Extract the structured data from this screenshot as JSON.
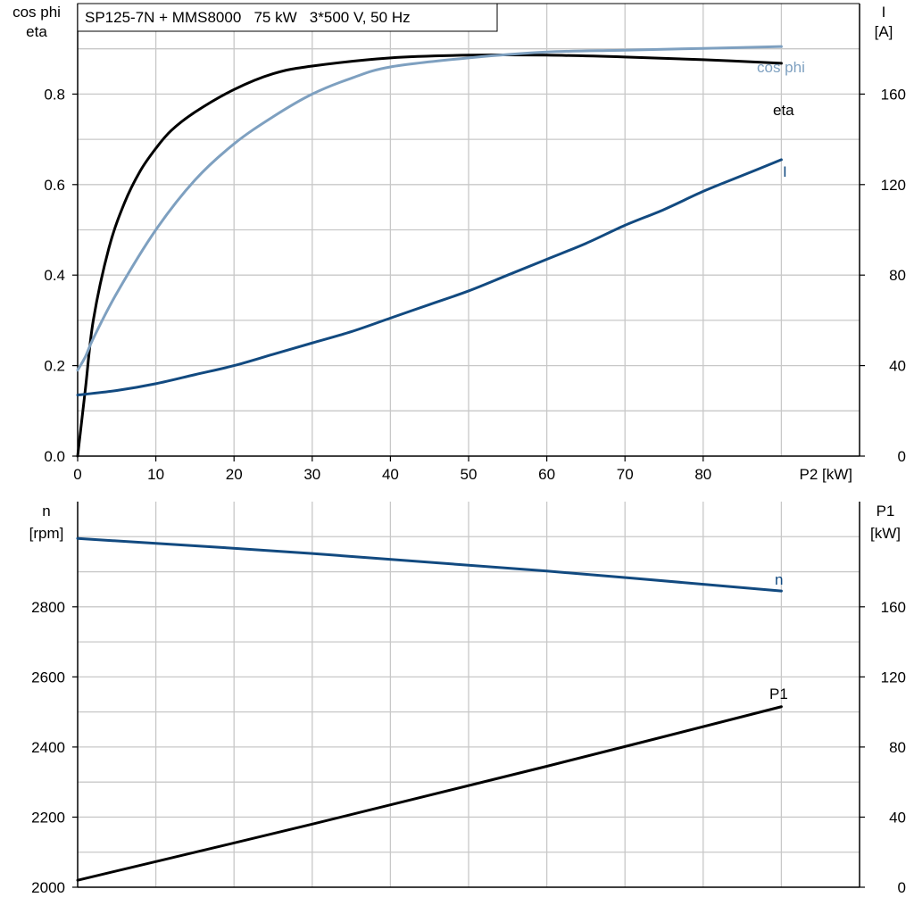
{
  "colors": {
    "black": "#000000",
    "light_blue": "#7ea0c0",
    "dark_blue": "#124a80",
    "grid": "#c8c8c8"
  },
  "chart_data": [
    {
      "type": "line",
      "title": "SP125-7N + MMS8000   75 kW   3*500 V, 50 Hz",
      "xlabel": "P2 [kW]",
      "xlim": [
        0,
        100
      ],
      "xticks": [
        "0",
        "10",
        "20",
        "30",
        "40",
        "50",
        "60",
        "70",
        "80"
      ],
      "ylabel_left": [
        "cos phi",
        "eta"
      ],
      "ylim_left": [
        0,
        1.0
      ],
      "yticks_left": [
        "0.0",
        "0.2",
        "0.4",
        "0.6",
        "0.8"
      ],
      "ylabel_right": [
        "I",
        "[A]"
      ],
      "ylim_right": [
        0,
        200
      ],
      "yticks_right": [
        "0",
        "40",
        "80",
        "120",
        "160"
      ],
      "grid": true,
      "series": [
        {
          "name": "eta",
          "axis": "left",
          "color": "#000000",
          "x": [
            0,
            1,
            2,
            4,
            6,
            8,
            10,
            12,
            15,
            20,
            25,
            30,
            40,
            50,
            60,
            70,
            80,
            90
          ],
          "y": [
            0.0,
            0.15,
            0.3,
            0.46,
            0.56,
            0.63,
            0.68,
            0.72,
            0.76,
            0.81,
            0.845,
            0.862,
            0.88,
            0.886,
            0.886,
            0.882,
            0.876,
            0.868
          ]
        },
        {
          "name": "cos phi",
          "axis": "left",
          "color": "#7ea0c0",
          "x": [
            0,
            1,
            2,
            5,
            10,
            15,
            20,
            25,
            30,
            35,
            40,
            50,
            60,
            70,
            80,
            90
          ],
          "y": [
            0.19,
            0.22,
            0.26,
            0.36,
            0.5,
            0.61,
            0.69,
            0.75,
            0.8,
            0.835,
            0.86,
            0.88,
            0.893,
            0.897,
            0.901,
            0.905
          ]
        },
        {
          "name": "I",
          "axis": "right",
          "color": "#124a80",
          "x": [
            0,
            5,
            10,
            15,
            20,
            25,
            30,
            35,
            40,
            45,
            50,
            55,
            60,
            65,
            70,
            75,
            80,
            85,
            90
          ],
          "y": [
            27,
            29,
            32,
            36,
            40,
            45,
            50,
            55,
            61,
            67,
            73,
            80,
            87,
            94,
            102,
            109,
            117,
            124,
            131
          ]
        }
      ]
    },
    {
      "type": "line",
      "xlim": [
        0,
        100
      ],
      "ylabel_left": [
        "n",
        "[rpm]"
      ],
      "ylim_left": [
        2000,
        3100
      ],
      "yticks_left": [
        "2000",
        "2200",
        "2400",
        "2600",
        "2800"
      ],
      "ylabel_right": [
        "P1",
        "[kW]"
      ],
      "ylim_right": [
        0,
        220
      ],
      "yticks_right": [
        "0",
        "40",
        "80",
        "120",
        "160"
      ],
      "grid": true,
      "series": [
        {
          "name": "n",
          "axis": "left",
          "color": "#124a80",
          "x": [
            0,
            30,
            60,
            90
          ],
          "y": [
            2995,
            2952,
            2902,
            2845
          ]
        },
        {
          "name": "P1",
          "axis": "right",
          "color": "#000000",
          "x": [
            0,
            30,
            60,
            90
          ],
          "y": [
            4,
            36,
            69,
            103
          ]
        }
      ]
    }
  ]
}
